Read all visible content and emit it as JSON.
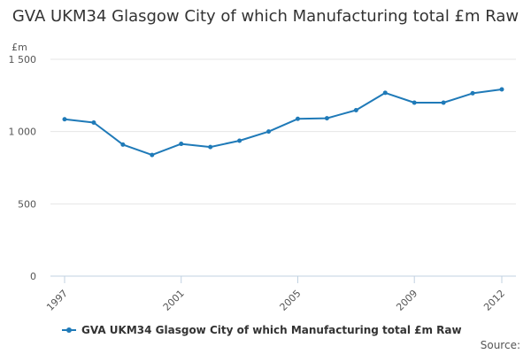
{
  "chart_data": {
    "type": "line",
    "title": "GVA UKM34 Glasgow City of which Manufacturing total £m Raw",
    "ylabel": "£m",
    "xlabel": "",
    "ylim": [
      0,
      1500
    ],
    "yticks": [
      0,
      500,
      1000,
      1500
    ],
    "ytick_labels": [
      "0",
      "500",
      "1 000",
      "1 500"
    ],
    "xticks": [
      1997,
      2001,
      2005,
      2009,
      2012
    ],
    "xtick_labels": [
      "1997",
      "2001",
      "2005",
      "2009",
      "2012"
    ],
    "grid": true,
    "legend_position": "bottom-left",
    "series": [
      {
        "name": "GVA UKM34 Glasgow City of which Manufacturing total £m Raw",
        "color": "#1f7ab8",
        "x": [
          1997,
          1998,
          1999,
          2000,
          2001,
          2002,
          2003,
          2004,
          2005,
          2006,
          2007,
          2008,
          2009,
          2010,
          2011,
          2012
        ],
        "values": [
          1085,
          1062,
          910,
          838,
          915,
          893,
          937,
          1000,
          1088,
          1092,
          1148,
          1268,
          1200,
          1200,
          1265,
          1292
        ]
      }
    ]
  },
  "footer": {
    "source_label": "Source:"
  }
}
